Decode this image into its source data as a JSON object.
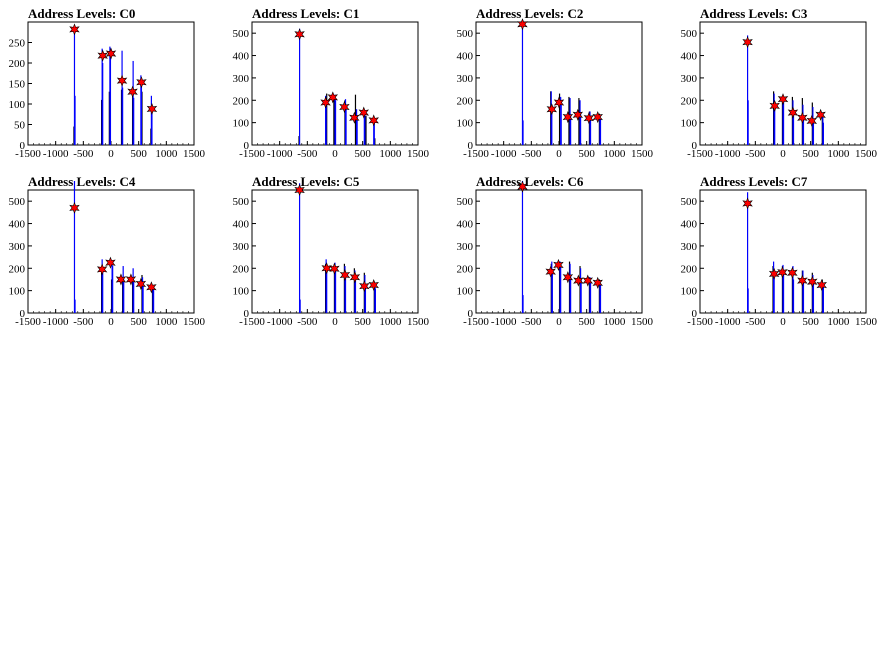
{
  "chart_data": [
    {
      "type": "bar",
      "title": "Address Levels: C0",
      "xlim": [
        -1500,
        1500
      ],
      "ylim": [
        0,
        300
      ],
      "xticks": [
        -1500,
        -1000,
        -500,
        0,
        500,
        1000,
        1500
      ],
      "yticks": [
        0,
        50,
        100,
        150,
        200,
        250
      ],
      "bars_blue": [
        [
          -660,
          285
        ],
        [
          -650,
          120
        ],
        [
          -160,
          235
        ],
        [
          -150,
          200
        ],
        [
          -20,
          240
        ],
        [
          -10,
          215
        ],
        [
          200,
          230
        ],
        [
          210,
          140
        ],
        [
          400,
          205
        ],
        [
          410,
          115
        ],
        [
          540,
          170
        ],
        [
          550,
          160
        ],
        [
          730,
          120
        ],
        [
          740,
          85
        ]
      ],
      "bars_black": [
        [
          -670,
          45
        ],
        [
          -170,
          110
        ],
        [
          -30,
          130
        ],
        [
          190,
          135
        ],
        [
          390,
          120
        ],
        [
          560,
          130
        ],
        [
          720,
          40
        ]
      ],
      "peaks": [
        [
          -660,
          282
        ],
        [
          -150,
          218
        ],
        [
          0,
          223
        ],
        [
          200,
          157
        ],
        [
          390,
          130
        ],
        [
          550,
          153
        ],
        [
          740,
          88
        ]
      ]
    },
    {
      "type": "bar",
      "title": "Address Levels: C1",
      "xlim": [
        -1500,
        1500
      ],
      "ylim": [
        0,
        550
      ],
      "xticks": [
        -1500,
        -1000,
        -500,
        0,
        500,
        1000,
        1500
      ],
      "yticks": [
        0,
        100,
        200,
        300,
        400,
        500
      ],
      "bars_blue": [
        [
          -640,
          520
        ],
        [
          -170,
          220
        ],
        [
          -160,
          195
        ],
        [
          0,
          225
        ],
        [
          10,
          200
        ],
        [
          190,
          205
        ],
        [
          200,
          180
        ],
        [
          390,
          160
        ],
        [
          400,
          130
        ],
        [
          530,
          140
        ],
        [
          540,
          150
        ],
        [
          700,
          120
        ],
        [
          710,
          110
        ]
      ],
      "bars_black": [
        [
          -650,
          40
        ],
        [
          -150,
          230
        ],
        [
          -20,
          220
        ],
        [
          180,
          200
        ],
        [
          370,
          225
        ],
        [
          560,
          130
        ],
        [
          720,
          30
        ]
      ],
      "peaks": [
        [
          -640,
          495
        ],
        [
          -170,
          190
        ],
        [
          -40,
          213
        ],
        [
          170,
          170
        ],
        [
          350,
          122
        ],
        [
          520,
          145
        ],
        [
          700,
          110
        ]
      ]
    },
    {
      "type": "bar",
      "title": "Address Levels: C2",
      "xlim": [
        -1500,
        1500
      ],
      "ylim": [
        0,
        550
      ],
      "xticks": [
        -1500,
        -1000,
        -500,
        0,
        500,
        1000,
        1500
      ],
      "yticks": [
        0,
        100,
        200,
        300,
        400,
        500
      ],
      "bars_blue": [
        [
          -660,
          560
        ],
        [
          -650,
          110
        ],
        [
          -140,
          240
        ],
        [
          -130,
          160
        ],
        [
          30,
          215
        ],
        [
          40,
          190
        ],
        [
          200,
          210
        ],
        [
          210,
          130
        ],
        [
          380,
          200
        ],
        [
          390,
          140
        ],
        [
          560,
          150
        ],
        [
          570,
          120
        ],
        [
          740,
          130
        ],
        [
          750,
          120
        ]
      ],
      "bars_black": [
        [
          -150,
          240
        ],
        [
          10,
          230
        ],
        [
          180,
          215
        ],
        [
          360,
          210
        ],
        [
          550,
          150
        ],
        [
          730,
          140
        ]
      ],
      "peaks": [
        [
          -660,
          540
        ],
        [
          -130,
          160
        ],
        [
          0,
          190
        ],
        [
          160,
          125
        ],
        [
          340,
          135
        ],
        [
          540,
          120
        ],
        [
          700,
          125
        ]
      ]
    },
    {
      "type": "bar",
      "title": "Address Levels: C3",
      "xlim": [
        -1500,
        1500
      ],
      "ylim": [
        0,
        550
      ],
      "xticks": [
        -1500,
        -1000,
        -500,
        0,
        500,
        1000,
        1500
      ],
      "yticks": [
        0,
        100,
        200,
        300,
        400,
        500
      ],
      "bars_blue": [
        [
          -640,
          490
        ],
        [
          -630,
          200
        ],
        [
          -160,
          230
        ],
        [
          -150,
          160
        ],
        [
          0,
          215
        ],
        [
          10,
          200
        ],
        [
          180,
          200
        ],
        [
          190,
          150
        ],
        [
          360,
          180
        ],
        [
          370,
          120
        ],
        [
          540,
          170
        ],
        [
          550,
          100
        ],
        [
          720,
          130
        ],
        [
          730,
          100
        ]
      ],
      "bars_black": [
        [
          -170,
          240
        ],
        [
          -10,
          220
        ],
        [
          170,
          215
        ],
        [
          350,
          210
        ],
        [
          530,
          190
        ],
        [
          710,
          140
        ]
      ],
      "peaks": [
        [
          -640,
          460
        ],
        [
          -150,
          175
        ],
        [
          0,
          205
        ],
        [
          180,
          145
        ],
        [
          350,
          122
        ],
        [
          520,
          108
        ],
        [
          680,
          135
        ]
      ]
    },
    {
      "type": "bar",
      "title": "Address Levels: C4",
      "xlim": [
        -1500,
        1500
      ],
      "ylim": [
        0,
        550
      ],
      "xticks": [
        -1500,
        -1000,
        -500,
        0,
        500,
        1000,
        1500
      ],
      "yticks": [
        0,
        100,
        200,
        300,
        400,
        500
      ],
      "bars_blue": [
        [
          -660,
          590
        ],
        [
          -650,
          60
        ],
        [
          -160,
          240
        ],
        [
          -150,
          190
        ],
        [
          20,
          230
        ],
        [
          30,
          210
        ],
        [
          220,
          210
        ],
        [
          230,
          150
        ],
        [
          400,
          200
        ],
        [
          410,
          140
        ],
        [
          570,
          160
        ],
        [
          580,
          130
        ],
        [
          760,
          120
        ],
        [
          770,
          110
        ]
      ],
      "bars_black": [
        [
          -170,
          200
        ],
        [
          10,
          150
        ],
        [
          210,
          160
        ],
        [
          390,
          150
        ],
        [
          560,
          170
        ],
        [
          750,
          110
        ]
      ],
      "peaks": [
        [
          -660,
          470
        ],
        [
          -160,
          195
        ],
        [
          -10,
          225
        ],
        [
          180,
          150
        ],
        [
          360,
          150
        ],
        [
          540,
          130
        ],
        [
          730,
          115
        ]
      ]
    },
    {
      "type": "bar",
      "title": "Address Levels: C5",
      "xlim": [
        -1500,
        1500
      ],
      "ylim": [
        0,
        550
      ],
      "xticks": [
        -1500,
        -1000,
        -500,
        0,
        500,
        1000,
        1500
      ],
      "yticks": [
        0,
        100,
        200,
        300,
        400,
        500
      ],
      "bars_blue": [
        [
          -640,
          580
        ],
        [
          -630,
          60
        ],
        [
          -160,
          240
        ],
        [
          -150,
          180
        ],
        [
          0,
          225
        ],
        [
          10,
          200
        ],
        [
          180,
          210
        ],
        [
          190,
          170
        ],
        [
          360,
          190
        ],
        [
          370,
          150
        ],
        [
          540,
          170
        ],
        [
          550,
          120
        ],
        [
          720,
          130
        ],
        [
          730,
          110
        ]
      ],
      "bars_black": [
        [
          -170,
          220
        ],
        [
          -10,
          220
        ],
        [
          170,
          220
        ],
        [
          350,
          200
        ],
        [
          530,
          180
        ],
        [
          710,
          140
        ]
      ],
      "peaks": [
        [
          -640,
          550
        ],
        [
          -150,
          200
        ],
        [
          -10,
          198
        ],
        [
          180,
          170
        ],
        [
          360,
          160
        ],
        [
          530,
          120
        ],
        [
          700,
          125
        ]
      ]
    },
    {
      "type": "bar",
      "title": "Address Levels: C6",
      "xlim": [
        -1500,
        1500
      ],
      "ylim": [
        0,
        550
      ],
      "xticks": [
        -1500,
        -1000,
        -500,
        0,
        500,
        1000,
        1500
      ],
      "yticks": [
        0,
        100,
        200,
        300,
        400,
        500
      ],
      "bars_blue": [
        [
          -660,
          590
        ],
        [
          -650,
          80
        ],
        [
          -130,
          230
        ],
        [
          -120,
          190
        ],
        [
          20,
          230
        ],
        [
          30,
          210
        ],
        [
          200,
          220
        ],
        [
          210,
          170
        ],
        [
          390,
          200
        ],
        [
          400,
          150
        ],
        [
          560,
          160
        ],
        [
          570,
          140
        ],
        [
          740,
          140
        ],
        [
          750,
          130
        ]
      ],
      "bars_black": [
        [
          -140,
          220
        ],
        [
          10,
          220
        ],
        [
          190,
          230
        ],
        [
          380,
          210
        ],
        [
          550,
          160
        ],
        [
          730,
          150
        ]
      ],
      "peaks": [
        [
          -660,
          565
        ],
        [
          -150,
          185
        ],
        [
          -10,
          215
        ],
        [
          160,
          160
        ],
        [
          350,
          145
        ],
        [
          520,
          145
        ],
        [
          700,
          135
        ]
      ]
    },
    {
      "type": "bar",
      "title": "Address Levels: C7",
      "xlim": [
        -1500,
        1500
      ],
      "ylim": [
        0,
        550
      ],
      "xticks": [
        -1500,
        -1000,
        -500,
        0,
        500,
        1000,
        1500
      ],
      "yticks": [
        0,
        100,
        200,
        300,
        400,
        500
      ],
      "bars_blue": [
        [
          -640,
          540
        ],
        [
          -630,
          110
        ],
        [
          -170,
          230
        ],
        [
          -160,
          170
        ],
        [
          0,
          215
        ],
        [
          10,
          170
        ],
        [
          180,
          210
        ],
        [
          190,
          150
        ],
        [
          360,
          190
        ],
        [
          370,
          150
        ],
        [
          540,
          170
        ],
        [
          550,
          130
        ],
        [
          720,
          130
        ],
        [
          730,
          120
        ]
      ],
      "bars_black": [
        [
          -180,
          210
        ],
        [
          -10,
          210
        ],
        [
          170,
          190
        ],
        [
          350,
          190
        ],
        [
          530,
          180
        ],
        [
          710,
          150
        ]
      ],
      "peaks": [
        [
          -640,
          490
        ],
        [
          -160,
          175
        ],
        [
          -10,
          182
        ],
        [
          170,
          180
        ],
        [
          350,
          145
        ],
        [
          530,
          140
        ],
        [
          700,
          125
        ]
      ]
    }
  ]
}
